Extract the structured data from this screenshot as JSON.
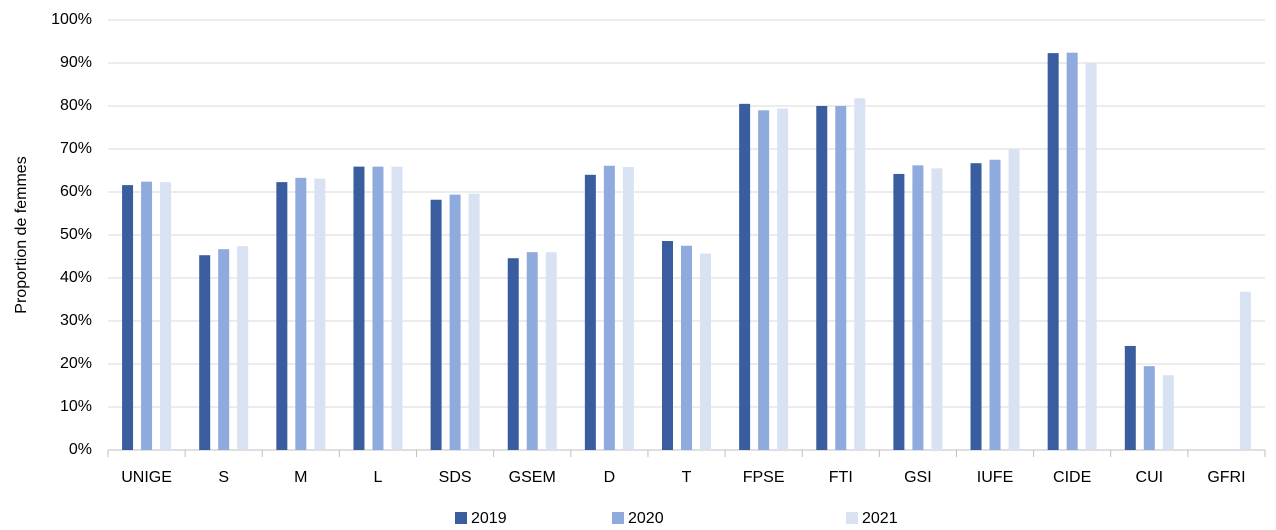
{
  "chart_data": {
    "type": "bar",
    "y_label": "Proportion de femmes",
    "categories": [
      "UNIGE",
      "S",
      "M",
      "L",
      "SDS",
      "GSEM",
      "D",
      "T",
      "FPSE",
      "FTI",
      "GSI",
      "IUFE",
      "CIDE",
      "CUI",
      "GFRI"
    ],
    "series": [
      {
        "name": "2019",
        "color": "#3a5da0",
        "values": [
          61.6,
          45.3,
          62.3,
          65.9,
          58.2,
          44.6,
          64.0,
          48.6,
          80.5,
          80.0,
          64.2,
          66.7,
          92.3,
          24.2,
          null
        ]
      },
      {
        "name": "2020",
        "color": "#8faadc",
        "values": [
          62.4,
          46.7,
          63.3,
          65.9,
          59.4,
          46.0,
          66.1,
          47.5,
          79.0,
          80.0,
          66.2,
          67.5,
          92.4,
          19.5,
          null
        ]
      },
      {
        "name": "2021",
        "color": "#d9e2f3",
        "values": [
          62.3,
          47.4,
          63.1,
          65.9,
          59.6,
          46.0,
          65.8,
          45.7,
          79.4,
          81.8,
          65.5,
          70.0,
          90.0,
          17.4,
          36.8
        ]
      }
    ],
    "ylim": [
      0,
      100
    ],
    "yticks": [
      {
        "value": 0,
        "label": "0%"
      },
      {
        "value": 10,
        "label": "10%"
      },
      {
        "value": 20,
        "label": "20%"
      },
      {
        "value": 30,
        "label": "30%"
      },
      {
        "value": 40,
        "label": "40%"
      },
      {
        "value": 50,
        "label": "50%"
      },
      {
        "value": 60,
        "label": "60%"
      },
      {
        "value": 70,
        "label": "70%"
      },
      {
        "value": 80,
        "label": "80%"
      },
      {
        "value": 90,
        "label": "90%"
      },
      {
        "value": 100,
        "label": "100%"
      }
    ],
    "grid": true,
    "legend": "bottom"
  }
}
